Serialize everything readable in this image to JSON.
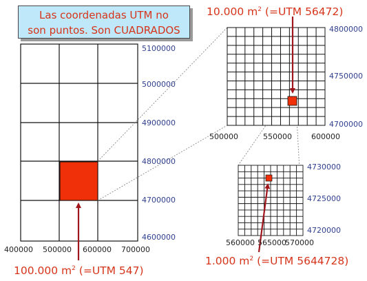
{
  "title": {
    "line1": "Las coordenadas UTM no",
    "line2": "son puntos. Son CUADRADOS"
  },
  "captions": {
    "large": {
      "pre": "100.000 m",
      "sup": "2",
      "post": " (=UTM 547)"
    },
    "medium": {
      "pre": "10.000 m",
      "sup": "2",
      "post": " (=UTM 56472)"
    },
    "small": {
      "pre": "1.000 m",
      "sup": "2",
      "post": " (=UTM 5644728)"
    }
  },
  "panels": {
    "large": {
      "y_labels": [
        "5100000",
        "5000000",
        "4900000",
        "4800000",
        "4700000",
        "4600000"
      ],
      "x_labels": [
        "400000",
        "500000",
        "600000",
        "700000"
      ]
    },
    "medium": {
      "y_labels": [
        "4800000",
        "4750000",
        "4700000"
      ],
      "x_labels": [
        "500000",
        "550000",
        "600000"
      ]
    },
    "small": {
      "y_labels": [
        "4730000",
        "4725000",
        "4720000"
      ],
      "x_labels": [
        "560000",
        "565000",
        "570000"
      ]
    }
  },
  "colors": {
    "highlight": "#f03008",
    "caption": "#d6341a",
    "axis_label": "#2f3f8f",
    "title_bg": "#bfe8fb"
  }
}
